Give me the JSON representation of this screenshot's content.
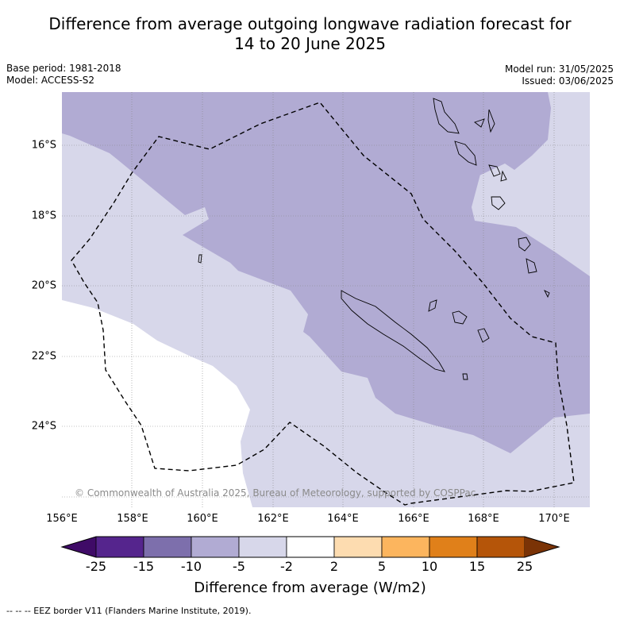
{
  "title": {
    "line1": "Difference from average outgoing longwave radiation forecast for",
    "line2": "14 to 20 June 2025"
  },
  "meta": {
    "base_period": "Base period: 1981-2018",
    "model": "Model: ACCESS-S2",
    "model_run": "Model run: 31/05/2025",
    "issued": "Issued: 03/06/2025"
  },
  "map": {
    "copyright": "© Commonwealth of Australia 2025, Bureau of Meteorology, supported by COSPPac",
    "lat_labels": [
      "16°S",
      "18°S",
      "20°S",
      "22°S",
      "24°S"
    ],
    "lon_labels": [
      "156°E",
      "158°E",
      "160°E",
      "162°E",
      "164°E",
      "166°E",
      "168°E",
      "170°E"
    ],
    "extent": {
      "lon": [
        156,
        171
      ],
      "lat": [
        -14.8,
        -26.6
      ]
    },
    "colors": {
      "bin_-5_-2": "#d7d7ea",
      "bin_-15_-5_light": "#b1abd3",
      "neutral": "#ffffff",
      "coast": "#000000",
      "eez": "#000000"
    }
  },
  "colorbar": {
    "ticks": [
      "-25",
      "-15",
      "-10",
      "-5",
      "-2",
      "2",
      "5",
      "10",
      "15",
      "25"
    ],
    "colors": [
      "#3f0b67",
      "#55258d",
      "#7d6fac",
      "#b1abd3",
      "#d7d7ea",
      "#ffffff",
      "#fddcb0",
      "#fcb55e",
      "#e0801a",
      "#b55509",
      "#7a3306"
    ],
    "label": "Difference from average (W/m2)"
  },
  "footnote": "--  --  -- EEZ border V11 (Flanders Marine Institute, 2019)."
}
